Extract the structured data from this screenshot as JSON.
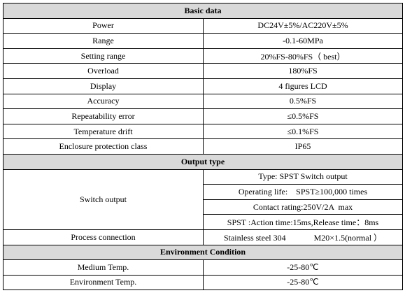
{
  "sections": [
    {
      "title": "Basic data",
      "rows": [
        {
          "label": "Power",
          "value": "DC24V±5%/AC220V±5%"
        },
        {
          "label": "Range",
          "value": "-0.1-60MPa"
        },
        {
          "label": "Setting range",
          "value": "20%FS-80%FS（ best）"
        },
        {
          "label": "Overload",
          "value": "180%FS"
        },
        {
          "label": "Display",
          "value": "4 figures LCD"
        },
        {
          "label": "Accuracy",
          "value": "0.5%FS"
        },
        {
          "label": "Repeatability error",
          "value": "≤0.5%FS"
        },
        {
          "label": "Temperature drift",
          "value": "≤0.1%FS"
        },
        {
          "label": "Enclosure protection class",
          "value": "IP65"
        }
      ]
    },
    {
      "title": "Output type",
      "rows": [
        {
          "label": "Switch output",
          "values": [
            "Type: SPST Switch output",
            "Operating life:    SPST≥100,000 times",
            "Contact rating:250V/2A  max",
            "SPST :Action time:15ms,Release time：8ms"
          ]
        },
        {
          "label": "Process connection",
          "value": [
            "Stainless steel 304",
            "M20×1.5(normal ）"
          ]
        }
      ]
    },
    {
      "title": "Environment Condition",
      "rows": [
        {
          "label": "Medium Temp.",
          "value": "-25-80℃"
        },
        {
          "label": "Environment Temp.",
          "value": "-25-80℃"
        }
      ]
    }
  ]
}
